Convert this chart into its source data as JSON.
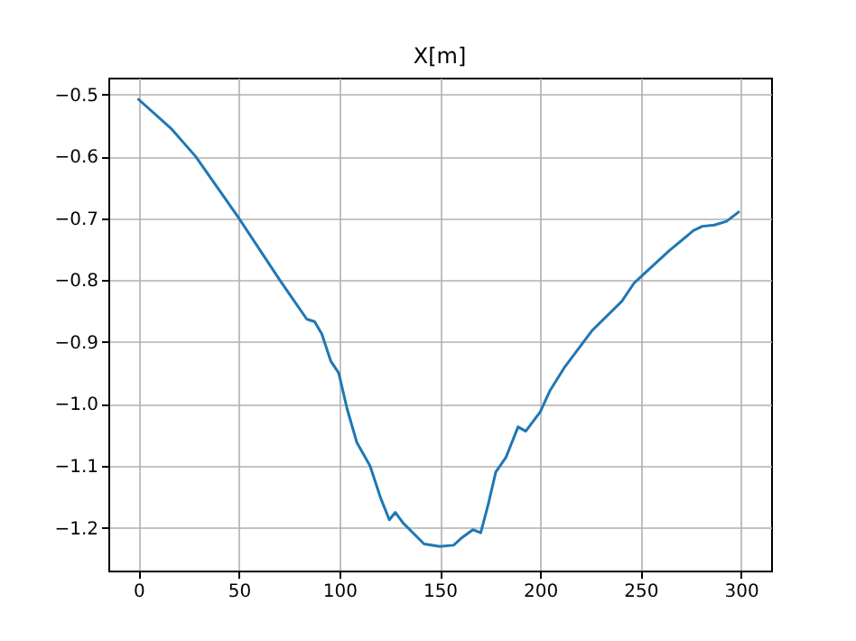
{
  "chart_data": {
    "type": "line",
    "title": "X[m]",
    "x": [
      0,
      16.5,
      28.4,
      50,
      70.4,
      83.8,
      87.7,
      91.3,
      95.8,
      99.7,
      103.9,
      108.7,
      115.3,
      120.7,
      124.9,
      127.9,
      131.7,
      142.2,
      150,
      156.9,
      161.4,
      166.5,
      170.4,
      174,
      177.9,
      183,
      189,
      192.8,
      200,
      204.8,
      212.3,
      225.7,
      240.7,
      246.7,
      250,
      264.4,
      276.3,
      280.8,
      286.8,
      292.8,
      298.8
    ],
    "series": [
      {
        "color": "#1f77b4",
        "values": [
          -0.508,
          -0.556,
          -0.6,
          -0.7,
          -0.8,
          -0.863,
          -0.867,
          -0.887,
          -0.931,
          -0.95,
          -1.008,
          -1.062,
          -1.1,
          -1.153,
          -1.187,
          -1.175,
          -1.192,
          -1.226,
          -1.23,
          -1.228,
          -1.215,
          -1.203,
          -1.208,
          -1.164,
          -1.11,
          -1.086,
          -1.037,
          -1.044,
          -1.013,
          -0.979,
          -0.94,
          -0.882,
          -0.834,
          -0.805,
          -0.795,
          -0.752,
          -0.72,
          -0.713,
          -0.711,
          -0.705,
          -0.69
        ]
      }
    ],
    "xlim": [
      -15,
      315
    ],
    "xticks": [
      0,
      50,
      100,
      150,
      200,
      250,
      300
    ],
    "ylim": [
      -1.269,
      -0.473
    ],
    "yticks": [
      -1.2,
      -1.1,
      {
        "value": -1,
        "label": "−1.0"
      },
      -0.9,
      -0.8,
      -0.7,
      -0.6,
      -0.5
    ],
    "grid": true,
    "line_style": "solid",
    "marker": "none"
  }
}
